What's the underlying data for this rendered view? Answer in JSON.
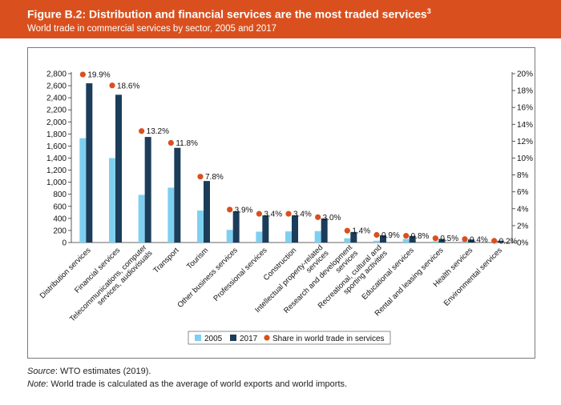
{
  "header": {
    "title": "Figure B.2: Distribution and financial services are the most traded services",
    "title_sup": "3",
    "subtitle": "World trade in commercial services by sector, 2005 and 2017"
  },
  "footer": {
    "source_label": "Source",
    "source_text": ": WTO estimates (2019).",
    "note_label": "Note",
    "note_text": ": World trade is calculated as the average of world exports and world imports."
  },
  "colors": {
    "series_2005": "#7fd0f0",
    "series_2017": "#1c3d5a",
    "share": "#d9501e",
    "header": "#d9501e"
  },
  "chart_data": {
    "type": "bar",
    "title": "World trade in commercial services by sector, 2005 and 2017",
    "categories": [
      "Distribution services",
      "Financial services",
      "Telecommunications, computer services, audiovisuals",
      "Transport",
      "Tourism",
      "Other business services",
      "Professional services",
      "Construction",
      "Intellectual property-related services",
      "Research and development services",
      "Recreational, cultural and sporting activities",
      "Educational services",
      "Rental and leasing services",
      "Health services",
      "Environmental services"
    ],
    "category_lines": [
      [
        "Distribution services"
      ],
      [
        "Financial services"
      ],
      [
        "Telecommunications, computer",
        "services, audiovisuals"
      ],
      [
        "Transport"
      ],
      [
        "Tourism"
      ],
      [
        "Other business services"
      ],
      [
        "Professional services"
      ],
      [
        "Construction"
      ],
      [
        "Intellectual property-related",
        "services"
      ],
      [
        "Research and development",
        "services"
      ],
      [
        "Recreational, cultural and",
        "sporting activities"
      ],
      [
        "Educational services"
      ],
      [
        "Rental and leasing services"
      ],
      [
        "Health services"
      ],
      [
        "Environmental services"
      ]
    ],
    "series": [
      {
        "name": "2005",
        "values": [
          1730,
          1400,
          790,
          910,
          530,
          210,
          180,
          185,
          190,
          70,
          30,
          60,
          20,
          20,
          10
        ]
      },
      {
        "name": "2017",
        "values": [
          2640,
          2450,
          1750,
          1570,
          1020,
          520,
          450,
          450,
          400,
          175,
          120,
          110,
          60,
          50,
          30
        ]
      }
    ],
    "share_series": {
      "name": "Share in world trade in services",
      "values": [
        19.9,
        18.6,
        13.2,
        11.8,
        7.8,
        3.9,
        3.4,
        3.4,
        3.0,
        1.4,
        0.9,
        0.8,
        0.5,
        0.4,
        0.2
      ],
      "labels": [
        "19.9%",
        "18.6%",
        "13.2%",
        "11.8%",
        "7.8%",
        "3.9%",
        "3.4%",
        "3.4%",
        "3.0%",
        "1.4%",
        "0.9%",
        "0.8%",
        "0.5%",
        "0.4%",
        "0.2%"
      ]
    },
    "y_left": {
      "range": [
        0,
        2800
      ],
      "ticks": [
        0,
        200,
        400,
        600,
        800,
        1000,
        1200,
        1400,
        1600,
        1800,
        2000,
        2200,
        2400,
        2600,
        2800
      ],
      "tick_labels": [
        "0",
        "200",
        "400",
        "600",
        "800",
        "1,000",
        "1,200",
        "1,400",
        "1,600",
        "1,800",
        "2,000",
        "2,200",
        "2,400",
        "2,600",
        "2,800"
      ]
    },
    "y_right": {
      "range": [
        0,
        20
      ],
      "ticks": [
        0,
        2,
        4,
        6,
        8,
        10,
        12,
        14,
        16,
        18,
        20
      ],
      "tick_labels": [
        "0%",
        "2%",
        "4%",
        "6%",
        "8%",
        "10%",
        "12%",
        "14%",
        "16%",
        "18%",
        "20%"
      ]
    },
    "legend": {
      "position": "bottom",
      "entries": [
        "2005",
        "2017",
        "Share in world trade in services"
      ]
    },
    "grid": false
  }
}
